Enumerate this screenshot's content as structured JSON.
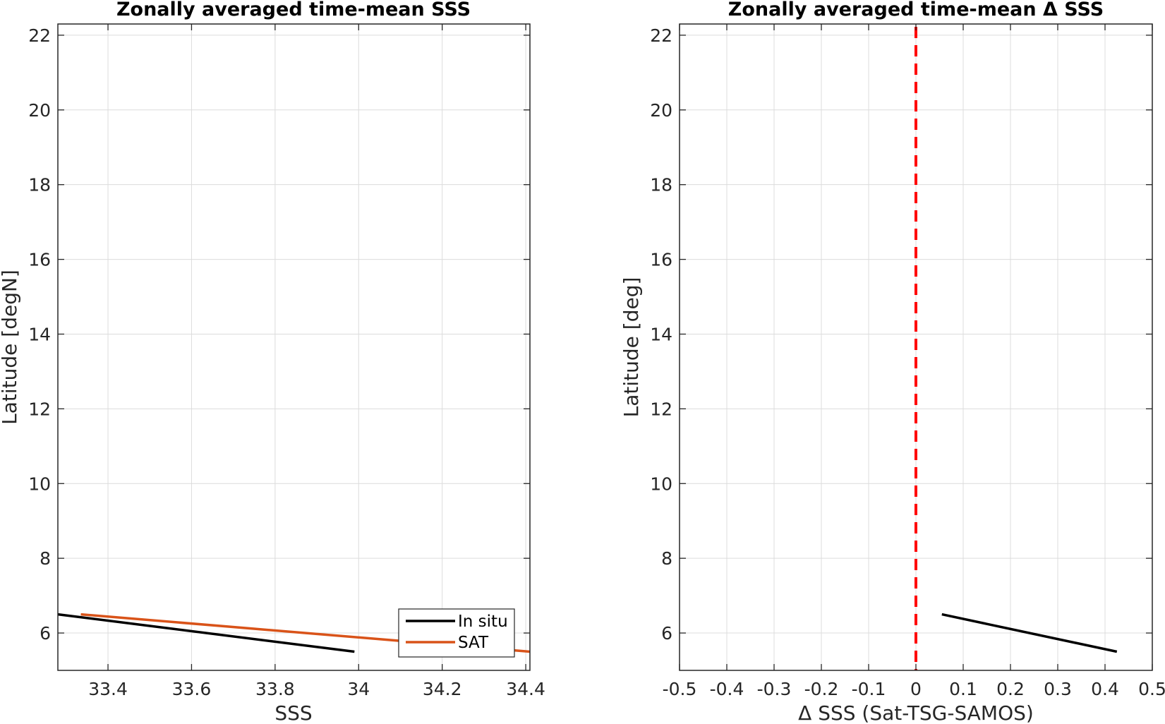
{
  "chart_data": [
    {
      "type": "line",
      "title": "Zonally averaged time-mean SSS",
      "xlabel": "SSS",
      "ylabel": "Latitude [degN]",
      "xlim": [
        33.28,
        34.41
      ],
      "ylim": [
        5,
        22.3
      ],
      "xticks": [
        33.4,
        33.6,
        33.8,
        34,
        34.2,
        34.4
      ],
      "xtick_labels": [
        "33.4",
        "33.6",
        "33.8",
        "34",
        "34.2",
        "34.4"
      ],
      "yticks": [
        6,
        8,
        10,
        12,
        14,
        16,
        18,
        20,
        22
      ],
      "ytick_labels": [
        "6",
        "8",
        "10",
        "12",
        "14",
        "16",
        "18",
        "20",
        "22"
      ],
      "grid": true,
      "legend_position": "bottom-right",
      "series": [
        {
          "name": "In situ",
          "color": "#000000",
          "x": [
            33.28,
            33.99
          ],
          "y": [
            6.5,
            5.5
          ]
        },
        {
          "name": "SAT",
          "color": "#D95319",
          "x": [
            33.335,
            34.41
          ],
          "y": [
            6.5,
            5.5
          ]
        }
      ]
    },
    {
      "type": "line",
      "title": "Zonally averaged time-mean Δ SSS",
      "xlabel": "Δ SSS (Sat-TSG-SAMOS)",
      "ylabel": "Latitude [deg]",
      "xlim": [
        -0.5,
        0.5
      ],
      "ylim": [
        5,
        22.3
      ],
      "xticks": [
        -0.5,
        -0.4,
        -0.3,
        -0.2,
        -0.1,
        0,
        0.1,
        0.2,
        0.3,
        0.4,
        0.5
      ],
      "xtick_labels": [
        "-0.5",
        "-0.4",
        "-0.3",
        "-0.2",
        "-0.1",
        "0",
        "0.1",
        "0.2",
        "0.3",
        "0.4",
        "0.5"
      ],
      "yticks": [
        6,
        8,
        10,
        12,
        14,
        16,
        18,
        20,
        22
      ],
      "ytick_labels": [
        "6",
        "8",
        "10",
        "12",
        "14",
        "16",
        "18",
        "20",
        "22"
      ],
      "grid": true,
      "reference_line": {
        "x": 0,
        "style": "dashed",
        "color": "#FF0000"
      },
      "series": [
        {
          "color": "#000000",
          "x": [
            0.055,
            0.425
          ],
          "y": [
            6.5,
            5.5
          ]
        }
      ]
    }
  ]
}
